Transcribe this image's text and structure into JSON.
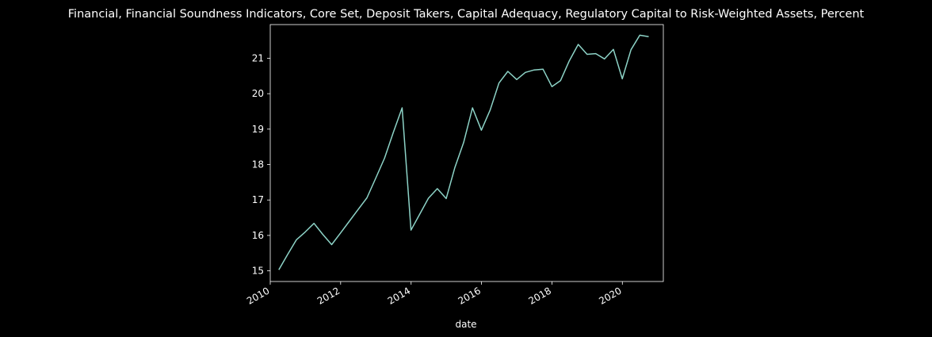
{
  "chart_data": {
    "type": "line",
    "title": "Financial, Financial Soundness Indicators, Core Set, Deposit Takers, Capital Adequacy, Regulatory Capital to Risk-Weighted Assets, Percent",
    "xlabel": "date",
    "ylabel": "",
    "xlim": [
      "2010-01-01",
      "2021-03-01"
    ],
    "ylim": [
      14.7,
      21.95
    ],
    "x_ticks": [
      {
        "value": "2010-01-01",
        "label": "2010"
      },
      {
        "value": "2012-01-01",
        "label": "2012"
      },
      {
        "value": "2014-01-01",
        "label": "2014"
      },
      {
        "value": "2016-01-01",
        "label": "2016"
      },
      {
        "value": "2018-01-01",
        "label": "2018"
      },
      {
        "value": "2020-01-01",
        "label": "2020"
      }
    ],
    "y_ticks": [
      15,
      16,
      17,
      18,
      19,
      20,
      21
    ],
    "grid": false,
    "legend": "none",
    "line_color": "#8dd3c7",
    "x": [
      "2010-03-31",
      "2010-06-30",
      "2010-09-30",
      "2010-12-31",
      "2011-03-31",
      "2011-06-30",
      "2011-09-30",
      "2011-12-31",
      "2012-03-31",
      "2012-06-30",
      "2012-09-30",
      "2012-12-31",
      "2013-03-31",
      "2013-06-30",
      "2013-09-30",
      "2013-12-31",
      "2014-03-31",
      "2014-06-30",
      "2014-09-30",
      "2014-12-31",
      "2015-03-31",
      "2015-06-30",
      "2015-09-30",
      "2015-12-31",
      "2016-03-31",
      "2016-06-30",
      "2016-09-30",
      "2016-12-31",
      "2017-03-31",
      "2017-06-30",
      "2017-09-30",
      "2017-12-31",
      "2018-03-31",
      "2018-06-30",
      "2018-09-30",
      "2018-12-31",
      "2019-03-31",
      "2019-06-30",
      "2019-09-30",
      "2019-12-31",
      "2020-03-31",
      "2020-06-30",
      "2020-09-30"
    ],
    "values": [
      15.03,
      15.46,
      15.88,
      16.1,
      16.34,
      16.03,
      15.74,
      16.07,
      16.4,
      16.73,
      17.06,
      17.62,
      18.18,
      18.9,
      19.6,
      16.15,
      16.6,
      17.05,
      17.32,
      17.04,
      17.92,
      18.62,
      19.6,
      18.97,
      19.54,
      20.3,
      20.63,
      20.4,
      20.6,
      20.67,
      20.69,
      20.2,
      20.37,
      20.93,
      21.39,
      21.11,
      21.13,
      20.98,
      21.25,
      20.42,
      21.24,
      21.65,
      21.61
    ]
  }
}
